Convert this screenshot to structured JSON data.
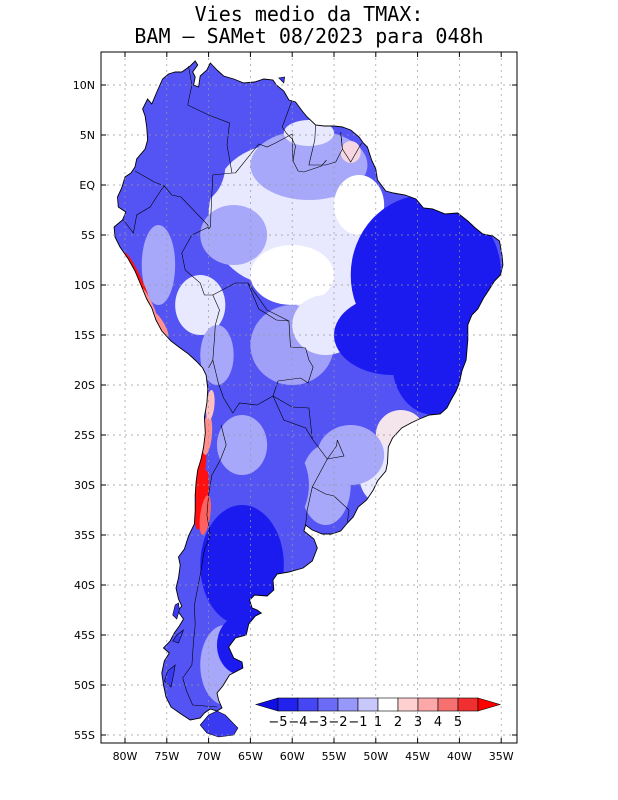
{
  "title": {
    "line1": "Vies medio da TMAX:",
    "line2": "BAM – SAMet 08/2023  para 048h"
  },
  "map": {
    "region": "South America",
    "lat_labels": [
      "10N",
      "5N",
      "EQ",
      "5S",
      "10S",
      "15S",
      "20S",
      "25S",
      "30S",
      "35S",
      "40S",
      "45S",
      "50S",
      "55S"
    ],
    "lon_labels": [
      "80W",
      "75W",
      "70W",
      "65W",
      "60W",
      "55W",
      "50W",
      "45W",
      "40W",
      "35W"
    ]
  },
  "colorbar": {
    "labels": [
      "−5",
      "−4",
      "−3",
      "−2",
      "−1",
      "1",
      "2",
      "3",
      "4",
      "5"
    ],
    "colors": [
      "#2222ee",
      "#4646f4",
      "#6b6bf7",
      "#9898fa",
      "#c8c8fc",
      "#ffffff",
      "#ffd0d0",
      "#fca8a8",
      "#f77070",
      "#f03030",
      "#ff0000"
    ],
    "left_arrow_color": "#1010e6",
    "right_arrow_color": "#ff0000"
  },
  "colors": {
    "grid": "#999999",
    "coast": "#000000",
    "strong_neg": "#1b1bf0",
    "neg": "#5454f5",
    "weak_neg": "#a8a8fa",
    "near_zero": "#e8e8ff",
    "pos": "#ff9090",
    "strong_pos": "#ff1010"
  }
}
